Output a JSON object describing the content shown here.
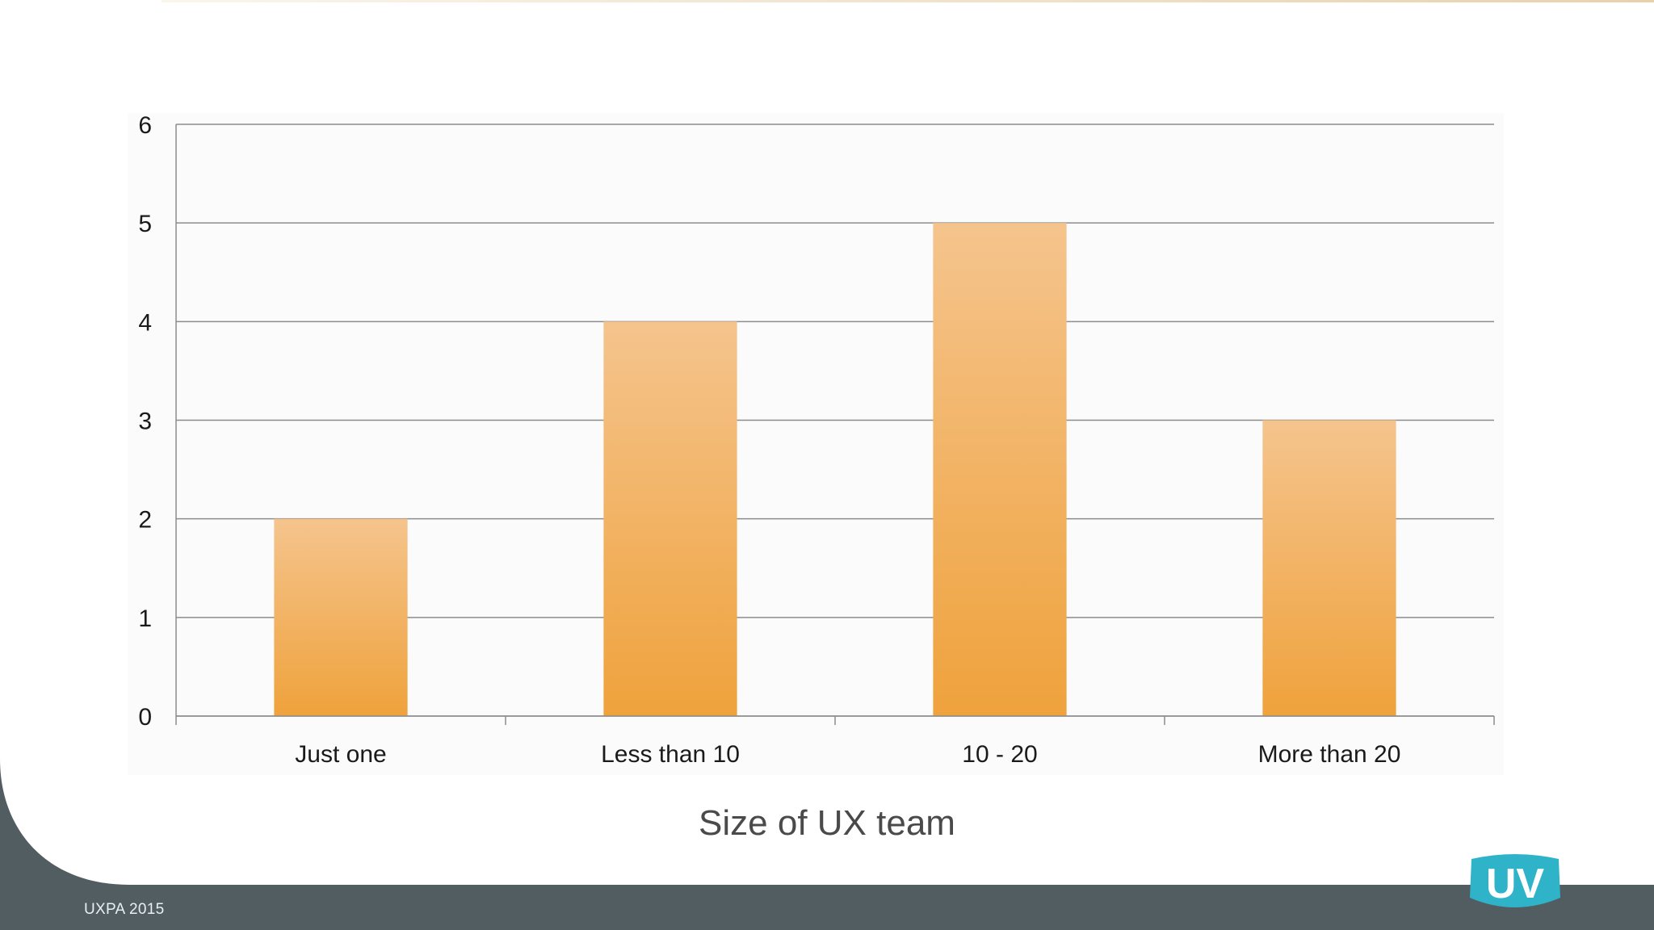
{
  "footer": {
    "label": "UXPA 2015"
  },
  "logo": {
    "text": "UV",
    "color": "#2eb3c9"
  },
  "colors": {
    "bar_top": "#f5c48d",
    "bar_bottom": "#efa23c",
    "gridline": "#8c8c8c",
    "axis_text": "#1a1a1a",
    "footer_band": "#525d62"
  },
  "chart_data": {
    "type": "bar",
    "categories": [
      "Just one",
      "Less than 10",
      "10 - 20",
      "More than 20"
    ],
    "values": [
      2,
      4,
      5,
      3
    ],
    "title": "Size of UX team",
    "xlabel": "",
    "ylabel": "",
    "ylim": [
      0,
      6
    ],
    "yticks": [
      0,
      1,
      2,
      3,
      4,
      5,
      6
    ],
    "grid": true,
    "legend": "none"
  }
}
